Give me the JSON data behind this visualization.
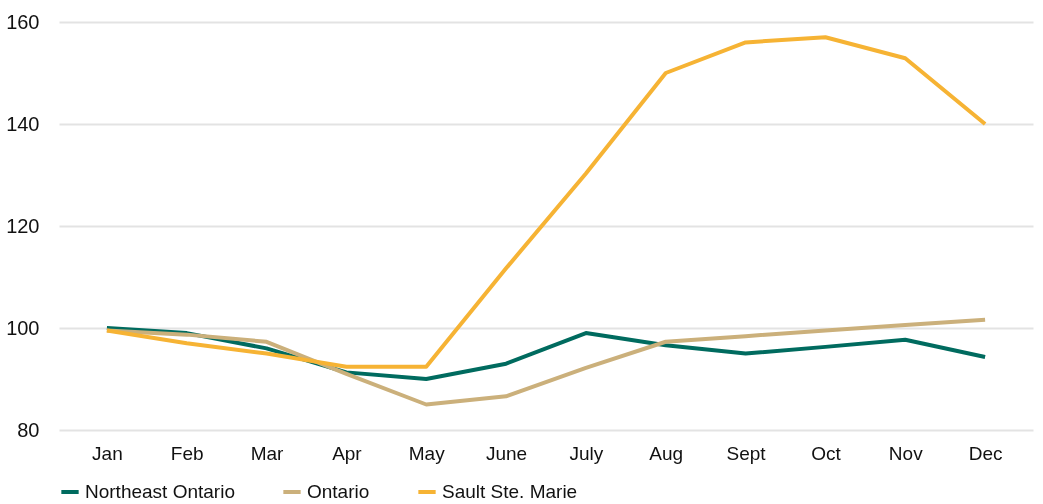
{
  "chart_data": {
    "type": "line",
    "categories": [
      "Jan",
      "Feb",
      "Mar",
      "Apr",
      "May",
      "June",
      "July",
      "Aug",
      "Sept",
      "Oct",
      "Nov",
      "Dec"
    ],
    "series": [
      {
        "name": "Northeast Ontario",
        "color": "#006b5f",
        "values": [
          100,
          99,
          96,
          91.3,
          90,
          93,
          99,
          96.6,
          95,
          96.3,
          97.7,
          94.3
        ]
      },
      {
        "name": "Ontario",
        "color": "#cbb07b",
        "values": [
          99.5,
          98.7,
          97.3,
          91,
          85,
          86.6,
          92.2,
          97.3,
          98.4,
          99.5,
          100.6,
          101.6
        ]
      },
      {
        "name": "Sault Ste. Marie",
        "color": "#f6b334",
        "values": [
          99.5,
          97,
          95,
          92.4,
          92.4,
          111.7,
          130.3,
          150,
          156,
          157,
          152.9,
          140
        ]
      }
    ],
    "ylim": [
      80,
      160
    ],
    "yticks": [
      80,
      100,
      120,
      140,
      160
    ],
    "grid": "y",
    "legend": "bottom",
    "marker": "none",
    "line_style": "solid"
  }
}
